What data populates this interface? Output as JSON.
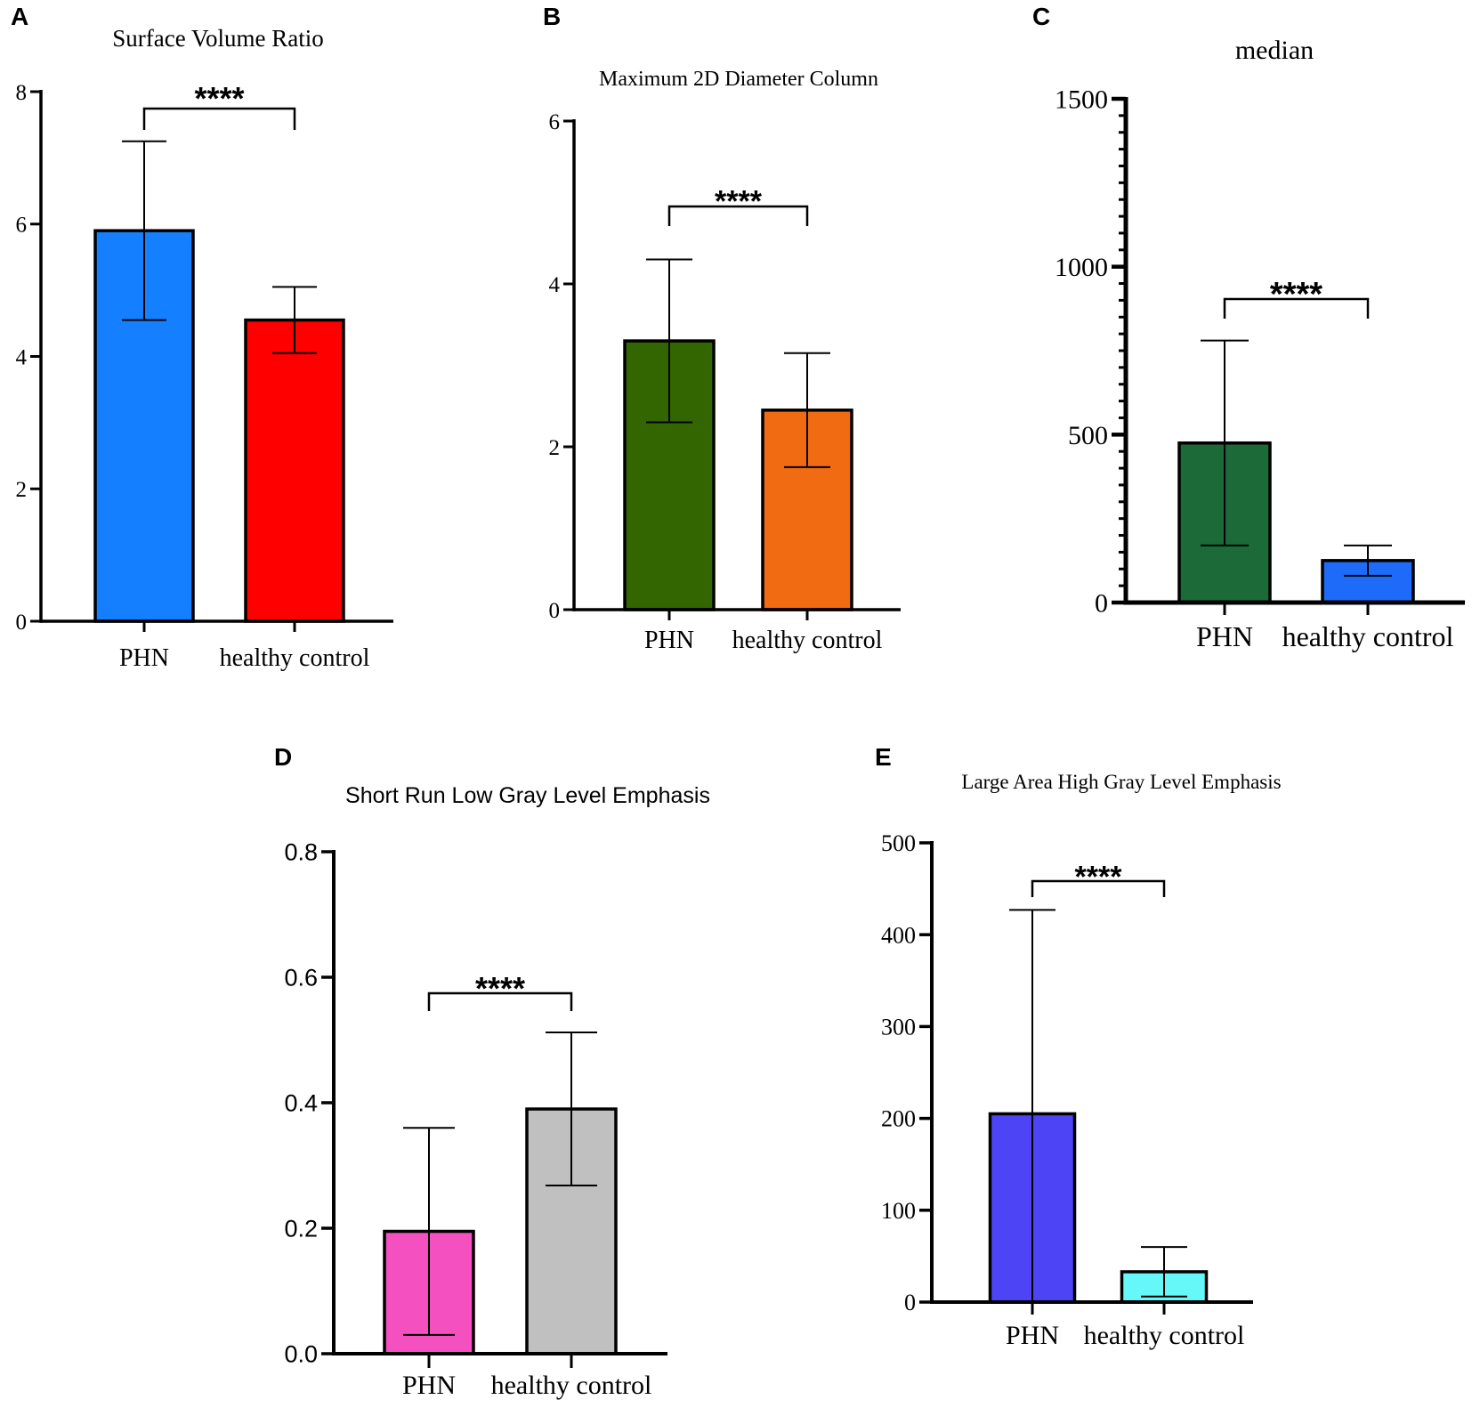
{
  "chart_data": [
    {
      "panel": "A",
      "type": "bar",
      "title": "Surface Volume Ratio",
      "categories": [
        "PHN",
        "healthy control"
      ],
      "values": [
        5.9,
        4.55
      ],
      "errors": [
        1.35,
        0.5
      ],
      "colors": [
        "#1480FF",
        "#FF0000"
      ],
      "ylim": [
        0,
        8
      ],
      "yticks": [
        "0",
        "2",
        "4",
        "6",
        "8"
      ],
      "significance": "****",
      "xlabel": "",
      "ylabel": ""
    },
    {
      "panel": "B",
      "type": "bar",
      "title": "Maximum 2D Diameter Column",
      "categories": [
        "PHN",
        "healthy control"
      ],
      "values": [
        3.3,
        2.45
      ],
      "errors": [
        1.0,
        0.7
      ],
      "colors": [
        "#336600",
        "#F06B11"
      ],
      "ylim": [
        0,
        6
      ],
      "yticks": [
        "0",
        "2",
        "4",
        "6"
      ],
      "significance": "****",
      "xlabel": "",
      "ylabel": ""
    },
    {
      "panel": "C",
      "type": "bar",
      "title": "median",
      "categories": [
        "PHN",
        "healthy control"
      ],
      "values": [
        475,
        125
      ],
      "errors": [
        305,
        45
      ],
      "colors": [
        "#1C6A38",
        "#1E6BFA"
      ],
      "ylim": [
        0,
        1500
      ],
      "yticks": [
        "0",
        "500",
        "1000",
        "1500"
      ],
      "significance": "****",
      "xlabel": "",
      "ylabel": ""
    },
    {
      "panel": "D",
      "type": "bar",
      "title": "Short Run Low Gray Level Emphasis",
      "categories": [
        "PHN",
        "healthy control"
      ],
      "values": [
        0.195,
        0.39
      ],
      "errors": [
        0.165,
        0.122
      ],
      "colors": [
        "#F550C0",
        "#C0C0C0"
      ],
      "ylim": [
        0,
        0.8
      ],
      "yticks": [
        "0.0",
        "0.2",
        "0.4",
        "0.6",
        "0.8"
      ],
      "significance": "****",
      "xlabel": "",
      "ylabel": ""
    },
    {
      "panel": "E",
      "type": "bar",
      "title": "Large Area High Gray Level Emphasis",
      "categories": [
        "PHN",
        "healthy control"
      ],
      "values": [
        205,
        33
      ],
      "errors": [
        222,
        27
      ],
      "colors": [
        "#4D44F5",
        "#66F8F8"
      ],
      "ylim": [
        0,
        500
      ],
      "yticks": [
        "0",
        "100",
        "200",
        "300",
        "400",
        "500"
      ],
      "significance": "****",
      "xlabel": "",
      "ylabel": ""
    }
  ]
}
